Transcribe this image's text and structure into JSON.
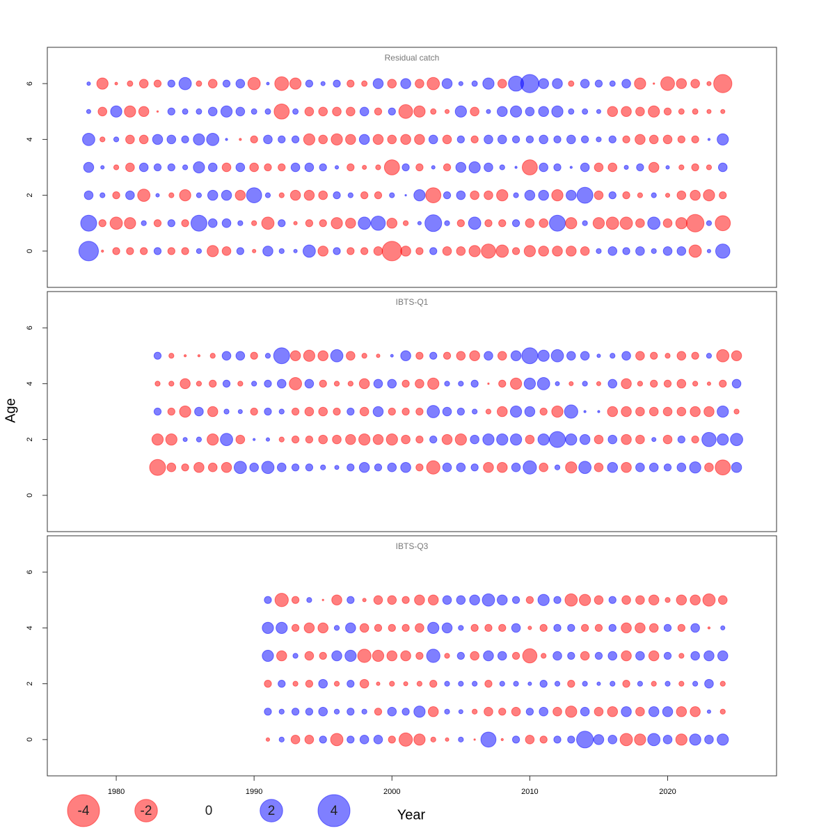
{
  "xlabel": "Year",
  "ylabel": "Age",
  "negative_color": "#ff0000",
  "positive_color": "#0000ff",
  "bubble_opacity": 0.5,
  "legend": {
    "values": [
      -4,
      -2,
      0,
      2,
      4
    ]
  },
  "chart_data": [
    {
      "type": "bubble",
      "title": "Residual catch",
      "xlim": [
        1975,
        2027.9
      ],
      "ylim": [
        -1.3,
        7.3
      ],
      "yticks": [
        0,
        2,
        4,
        6
      ],
      "x": [
        1978,
        1979,
        1980,
        1981,
        1982,
        1983,
        1984,
        1985,
        1986,
        1987,
        1988,
        1989,
        1990,
        1991,
        1992,
        1993,
        1994,
        1995,
        1996,
        1997,
        1998,
        1999,
        2000,
        2001,
        2002,
        2003,
        2004,
        2005,
        2006,
        2007,
        2008,
        2009,
        2010,
        2011,
        2012,
        2013,
        2014,
        2015,
        2016,
        2017,
        2018,
        2019,
        2020,
        2021,
        2022,
        2023,
        2024
      ],
      "rows": [
        {
          "age": 0,
          "values": [
            1.5,
            -0.02,
            -0.2,
            -0.2,
            -0.2,
            0.2,
            -0.2,
            -0.2,
            0.1,
            -0.5,
            -0.3,
            0.2,
            -0.05,
            0.4,
            0.1,
            0.05,
            0.6,
            -0.4,
            0.2,
            -0.2,
            -0.2,
            -0.3,
            -1.5,
            -0.4,
            -0.2,
            0.2,
            -0.3,
            -0.3,
            -0.5,
            -0.8,
            -0.6,
            -0.2,
            -0.5,
            -0.4,
            -0.4,
            -0.4,
            -0.3,
            0.1,
            0.3,
            0.2,
            0.3,
            0.1,
            0.3,
            0.3,
            -0.6,
            0.05,
            0.8
          ]
        },
        {
          "age": 1,
          "values": [
            1.0,
            -0.2,
            -0.6,
            -0.5,
            0.1,
            -0.2,
            0.2,
            -0.2,
            1.0,
            0.3,
            0.3,
            0.1,
            -0.1,
            -0.6,
            0.2,
            -0.05,
            -0.2,
            -0.2,
            -0.5,
            -0.4,
            0.6,
            0.8,
            -0.4,
            -0.1,
            0.05,
            1.1,
            0.1,
            -0.2,
            0.6,
            -0.2,
            -0.2,
            0.2,
            -0.3,
            -0.3,
            1.0,
            -0.5,
            0.1,
            -0.5,
            -0.6,
            -0.6,
            -0.3,
            0.6,
            -0.3,
            -0.5,
            -1.2,
            0.1,
            -0.9
          ]
        },
        {
          "age": 2,
          "values": [
            0.3,
            0.1,
            -0.2,
            0.3,
            -0.6,
            0.05,
            -0.1,
            -0.5,
            0.1,
            0.4,
            0.4,
            -0.4,
            0.9,
            0.1,
            -0.1,
            -0.4,
            -0.4,
            -0.3,
            0.2,
            0.1,
            -0.2,
            -0.2,
            0.1,
            0.01,
            0.5,
            -0.9,
            0.2,
            0.3,
            -0.3,
            -0.3,
            -0.5,
            0.1,
            0.4,
            0.4,
            -0.5,
            0.4,
            1.0,
            -0.3,
            0.2,
            -0.2,
            -0.1,
            0.1,
            -0.07,
            -0.3,
            -0.4,
            -0.5,
            -0.2
          ]
        },
        {
          "age": 3,
          "values": [
            0.4,
            0.05,
            -0.1,
            -0.3,
            0.3,
            0.2,
            0.2,
            0.1,
            0.5,
            0.3,
            -0.3,
            0.3,
            -0.3,
            -0.2,
            -0.2,
            0.3,
            0.3,
            0.2,
            0.05,
            -0.2,
            -0.07,
            -0.1,
            -0.9,
            0.2,
            -0.2,
            0.05,
            -0.2,
            0.4,
            0.5,
            0.3,
            0.1,
            0.02,
            -0.9,
            0.3,
            0.2,
            0.02,
            0.3,
            -0.3,
            -0.3,
            0.07,
            0.2,
            -0.4,
            0.05,
            -0.1,
            -0.2,
            -0.1,
            0.3
          ]
        },
        {
          "age": 4,
          "values": [
            0.6,
            -0.1,
            0.1,
            -0.3,
            -0.3,
            0.4,
            0.3,
            0.2,
            0.5,
            0.6,
            0.02,
            -0.02,
            -0.2,
            0.3,
            0.2,
            0.2,
            -0.5,
            -0.3,
            -0.5,
            -0.4,
            0.4,
            -0.4,
            -0.3,
            -0.4,
            -0.4,
            0.3,
            -0.3,
            0.2,
            -0.2,
            0.3,
            0.3,
            0.2,
            0.2,
            0.3,
            0.2,
            0.3,
            0.2,
            0.1,
            0.2,
            -0.2,
            -0.4,
            -0.3,
            -0.3,
            -0.2,
            -0.2,
            0.02,
            0.5
          ]
        },
        {
          "age": 5,
          "values": [
            0.07,
            -0.3,
            0.5,
            -0.5,
            -0.4,
            -0.01,
            0.2,
            0.12,
            0.12,
            0.3,
            0.5,
            0.3,
            0.12,
            0.12,
            -0.9,
            0.12,
            -0.3,
            -0.3,
            -0.3,
            -0.3,
            0.3,
            -0.2,
            0.2,
            -0.75,
            -0.5,
            -0.12,
            -0.07,
            0.5,
            -0.3,
            0.07,
            0.4,
            0.5,
            0.3,
            0.4,
            0.5,
            0.12,
            0.12,
            0.07,
            -0.4,
            -0.4,
            -0.3,
            -0.5,
            -0.2,
            -0.12,
            -0.12,
            -0.07,
            -0.07
          ]
        },
        {
          "age": 6,
          "values": [
            0.05,
            -0.5,
            -0.03,
            -0.12,
            -0.3,
            -0.2,
            0.2,
            0.6,
            -0.12,
            -0.3,
            0.2,
            0.3,
            -0.6,
            0.03,
            -0.75,
            -0.5,
            0.2,
            0.07,
            0.2,
            -0.2,
            -0.12,
            0.4,
            -0.3,
            0.4,
            -0.3,
            -0.6,
            0.4,
            0.07,
            0.12,
            0.5,
            -0.3,
            0.9,
            1.3,
            0.4,
            0.4,
            -0.12,
            0.3,
            0.2,
            0.12,
            0.3,
            -0.5,
            -0.01,
            -0.75,
            -0.4,
            -0.3,
            -0.07,
            -1.3
          ]
        }
      ]
    },
    {
      "type": "bubble",
      "title": "IBTS-Q1",
      "xlim": [
        1975,
        2027.9
      ],
      "ylim": [
        -1.3,
        7.3
      ],
      "yticks": [
        0,
        2,
        4,
        6
      ],
      "x": [
        1983,
        1984,
        1985,
        1986,
        1987,
        1988,
        1989,
        1990,
        1991,
        1992,
        1993,
        1994,
        1995,
        1996,
        1997,
        1998,
        1999,
        2000,
        2001,
        2002,
        2003,
        2004,
        2005,
        2006,
        2007,
        2008,
        2009,
        2010,
        2011,
        2012,
        2013,
        2014,
        2015,
        2016,
        2017,
        2018,
        2019,
        2020,
        2021,
        2022,
        2023,
        2024,
        2025
      ],
      "rows": [
        {
          "age": 1,
          "values": [
            -1.0,
            -0.3,
            -0.2,
            -0.4,
            -0.3,
            -0.4,
            0.6,
            0.3,
            0.6,
            0.3,
            0.2,
            0.2,
            0.1,
            0.07,
            0.2,
            0.4,
            0.2,
            0.3,
            0.4,
            -0.2,
            -0.7,
            0.3,
            0.3,
            0.2,
            -0.4,
            -0.4,
            0.3,
            0.7,
            -0.3,
            0.1,
            -0.5,
            0.6,
            -0.3,
            0.4,
            -0.4,
            0.3,
            0.3,
            0.2,
            0.3,
            0.5,
            -0.3,
            -0.9,
            0.4
          ]
        },
        {
          "age": 2,
          "values": [
            -0.5,
            -0.5,
            0.07,
            0.1,
            -0.5,
            0.6,
            -0.3,
            0.02,
            0.05,
            -0.1,
            -0.2,
            -0.2,
            -0.3,
            -0.3,
            -0.4,
            -0.5,
            -0.4,
            -0.5,
            -0.3,
            -0.2,
            0.2,
            -0.4,
            -0.5,
            0.3,
            0.5,
            0.5,
            0.5,
            -0.3,
            0.5,
            1.0,
            0.5,
            0.4,
            -0.3,
            0.3,
            -0.4,
            -0.3,
            0.07,
            -0.3,
            0.2,
            -0.2,
            0.8,
            0.5,
            0.6
          ]
        },
        {
          "age": 3,
          "values": [
            0.2,
            -0.2,
            -0.5,
            0.3,
            -0.4,
            0.1,
            0.07,
            -0.2,
            0.2,
            0.1,
            -0.2,
            -0.3,
            -0.3,
            -0.2,
            0.2,
            -0.3,
            0.4,
            -0.2,
            -0.2,
            -0.2,
            0.6,
            0.3,
            0.2,
            0.1,
            -0.1,
            -0.4,
            0.5,
            0.4,
            -0.2,
            -0.5,
            0.7,
            0.02,
            0.02,
            -0.4,
            -0.4,
            -0.3,
            -0.3,
            -0.3,
            -0.3,
            -0.4,
            -0.4,
            0.5,
            -0.1
          ]
        },
        {
          "age": 4,
          "values": [
            -0.1,
            -0.1,
            -0.4,
            -0.1,
            -0.2,
            0.2,
            -0.1,
            0.1,
            0.2,
            0.3,
            -0.6,
            0.3,
            -0.2,
            -0.1,
            -0.1,
            -0.4,
            0.3,
            0.3,
            -0.2,
            -0.3,
            -0.5,
            0.1,
            0.1,
            0.2,
            -0.01,
            -0.2,
            -0.5,
            0.5,
            0.6,
            0.07,
            -0.07,
            0.1,
            -0.07,
            0.3,
            -0.4,
            -0.1,
            -0.2,
            -0.2,
            -0.3,
            -0.1,
            -0.05,
            -0.2,
            0.3
          ]
        },
        {
          "age": 5,
          "values": [
            0.2,
            -0.1,
            -0.02,
            -0.02,
            -0.1,
            0.3,
            0.3,
            -0.2,
            0.1,
            1.0,
            -0.4,
            -0.5,
            -0.4,
            0.6,
            -0.3,
            -0.1,
            -0.05,
            0.03,
            0.4,
            -0.2,
            0.2,
            -0.2,
            -0.3,
            -0.4,
            0.3,
            -0.3,
            0.4,
            1.0,
            0.5,
            0.6,
            0.3,
            0.3,
            0.05,
            0.1,
            0.3,
            -0.3,
            -0.2,
            -0.1,
            -0.3,
            -0.2,
            0.1,
            -0.6,
            -0.4
          ]
        }
      ]
    },
    {
      "type": "bubble",
      "title": "IBTS-Q3",
      "xlim": [
        1975,
        2027.9
      ],
      "ylim": [
        -1.3,
        7.3
      ],
      "yticks": [
        0,
        2,
        4,
        6
      ],
      "xticks": [
        1980,
        1990,
        2000,
        2010,
        2020
      ],
      "x": [
        1991,
        1992,
        1993,
        1994,
        1995,
        1996,
        1997,
        1998,
        1999,
        2000,
        2001,
        2002,
        2003,
        2004,
        2005,
        2006,
        2007,
        2008,
        2009,
        2010,
        2011,
        2012,
        2013,
        2014,
        2015,
        2016,
        2017,
        2018,
        2019,
        2020,
        2021,
        2022,
        2023,
        2024
      ],
      "rows": [
        {
          "age": 0,
          "values": [
            -0.05,
            0.1,
            -0.3,
            -0.3,
            0.2,
            -0.6,
            0.2,
            0.3,
            0.3,
            -0.2,
            -0.7,
            -0.5,
            -0.1,
            -0.05,
            0.1,
            -0.01,
            0.9,
            -0.02,
            0.2,
            -0.3,
            -0.2,
            0.2,
            0.2,
            1.1,
            0.4,
            0.3,
            -0.6,
            -0.5,
            0.6,
            0.3,
            -0.5,
            0.5,
            0.3,
            0.5
          ]
        },
        {
          "age": 1,
          "values": [
            0.2,
            0.1,
            0.2,
            0.2,
            0.3,
            0.1,
            0.2,
            0.1,
            -0.2,
            0.3,
            0.2,
            0.5,
            -0.4,
            0.1,
            0.07,
            -0.1,
            -0.3,
            -0.2,
            -0.3,
            0.2,
            0.3,
            -0.3,
            -0.5,
            0.3,
            -0.3,
            -0.4,
            0.4,
            -0.3,
            0.4,
            0.4,
            -0.4,
            -0.4,
            0.05,
            -0.1
          ]
        },
        {
          "age": 2,
          "values": [
            -0.2,
            0.2,
            -0.1,
            -0.2,
            0.3,
            -0.1,
            0.2,
            -0.3,
            -0.05,
            -0.1,
            -0.07,
            -0.1,
            -0.2,
            0.1,
            0.1,
            0.1,
            -0.2,
            0.1,
            0.1,
            0.05,
            0.2,
            0.1,
            -0.2,
            0.1,
            0.05,
            0.1,
            -0.2,
            0.1,
            -0.1,
            0.1,
            -0.1,
            0.1,
            0.3,
            -0.1
          ]
        },
        {
          "age": 3,
          "values": [
            0.5,
            -0.4,
            0.1,
            -0.3,
            -0.2,
            0.4,
            0.5,
            -0.7,
            -0.5,
            -0.4,
            -0.4,
            -0.2,
            0.7,
            -0.1,
            0.2,
            -0.3,
            0.4,
            0.3,
            -0.2,
            -0.8,
            -0.1,
            0.3,
            0.2,
            -0.3,
            0.2,
            0.3,
            -0.4,
            0.3,
            -0.4,
            0.2,
            -0.1,
            0.3,
            0.4,
            0.4
          ]
        },
        {
          "age": 4,
          "values": [
            0.5,
            0.5,
            -0.2,
            -0.4,
            -0.4,
            0.1,
            0.4,
            -0.3,
            -0.2,
            -0.2,
            -0.2,
            -0.3,
            0.5,
            0.4,
            0.1,
            -0.2,
            -0.2,
            -0.2,
            0.3,
            -0.05,
            -0.2,
            0.2,
            0.2,
            -0.2,
            -0.2,
            0.2,
            -0.4,
            -0.4,
            -0.3,
            0.2,
            -0.2,
            0.3,
            -0.02,
            0.07
          ]
        },
        {
          "age": 5,
          "values": [
            0.2,
            -0.7,
            -0.2,
            0.1,
            -0.01,
            -0.4,
            0.2,
            -0.05,
            -0.3,
            -0.3,
            -0.2,
            -0.4,
            -0.4,
            0.3,
            0.3,
            0.4,
            0.6,
            0.4,
            0.2,
            -0.2,
            0.5,
            0.2,
            -0.6,
            -0.5,
            -0.3,
            0.2,
            -0.3,
            -0.3,
            -0.4,
            -0.1,
            -0.4,
            -0.4,
            -0.6,
            -0.3
          ]
        }
      ]
    }
  ]
}
